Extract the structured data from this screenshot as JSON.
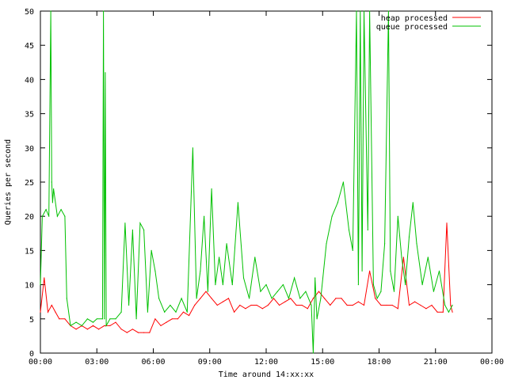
{
  "chart_data": {
    "type": "line",
    "xlabel": "Time around 14:xx:xx",
    "ylabel": "Queries per second",
    "x_ticks": [
      "00:00",
      "03:00",
      "06:00",
      "09:00",
      "12:00",
      "15:00",
      "18:00",
      "21:00",
      "00:00"
    ],
    "x_tick_hours": [
      0,
      3,
      6,
      9,
      12,
      15,
      18,
      21,
      24
    ],
    "xlim": [
      0,
      24
    ],
    "ylim": [
      0,
      50
    ],
    "y_ticks": [
      0,
      5,
      10,
      15,
      20,
      25,
      30,
      35,
      40,
      45,
      50
    ],
    "grid": false,
    "legend_position": "top-right",
    "series": [
      {
        "name": "heap processed",
        "color": "#ff0000",
        "x": [
          0.0,
          0.2,
          0.4,
          0.6,
          0.8,
          1.0,
          1.3,
          1.6,
          1.9,
          2.2,
          2.5,
          2.8,
          3.1,
          3.4,
          3.7,
          4.0,
          4.3,
          4.6,
          4.9,
          5.2,
          5.5,
          5.8,
          6.1,
          6.4,
          6.7,
          7.0,
          7.3,
          7.6,
          7.9,
          8.2,
          8.5,
          8.8,
          9.1,
          9.4,
          9.7,
          10.0,
          10.3,
          10.6,
          10.9,
          11.2,
          11.5,
          11.8,
          12.1,
          12.4,
          12.7,
          13.0,
          13.3,
          13.6,
          13.9,
          14.2,
          14.5,
          14.8,
          15.1,
          15.4,
          15.7,
          16.0,
          16.3,
          16.6,
          16.9,
          17.2,
          17.5,
          17.8,
          18.1,
          18.4,
          18.7,
          19.0,
          19.3,
          19.6,
          19.9,
          20.2,
          20.5,
          20.8,
          21.1,
          21.4,
          21.6,
          21.8,
          21.9
        ],
        "y": [
          6,
          11,
          6,
          7,
          6,
          5,
          5,
          4,
          3.5,
          4,
          3.5,
          4,
          3.5,
          4,
          4,
          4.5,
          3.5,
          3,
          3.5,
          3,
          3,
          3,
          5,
          4,
          4.5,
          5,
          5,
          6,
          5.5,
          7,
          8,
          9,
          8,
          7,
          7.5,
          8,
          6,
          7,
          6.5,
          7,
          7,
          6.5,
          7,
          8,
          7,
          7.5,
          8,
          7,
          7,
          6.5,
          8,
          9,
          8,
          7,
          8,
          8,
          7,
          7,
          7.5,
          7,
          12,
          8,
          7,
          7,
          7,
          6.5,
          14,
          7,
          7.5,
          7,
          6.5,
          7,
          6,
          6,
          19,
          7,
          6
        ]
      },
      {
        "name": "queue processed",
        "color": "#00c000",
        "x": [
          0.0,
          0.1,
          0.3,
          0.45,
          0.55,
          0.6,
          0.65,
          0.7,
          0.9,
          1.1,
          1.3,
          1.4,
          1.6,
          1.9,
          2.2,
          2.5,
          2.8,
          3.0,
          3.3,
          3.35,
          3.4,
          3.45,
          3.5,
          3.7,
          4.0,
          4.3,
          4.5,
          4.7,
          4.9,
          5.1,
          5.3,
          5.5,
          5.7,
          5.9,
          6.1,
          6.3,
          6.6,
          6.9,
          7.2,
          7.5,
          7.8,
          8.1,
          8.3,
          8.5,
          8.7,
          8.9,
          9.1,
          9.3,
          9.5,
          9.7,
          9.9,
          10.2,
          10.5,
          10.8,
          11.1,
          11.4,
          11.7,
          12.0,
          12.3,
          12.6,
          12.9,
          13.2,
          13.5,
          13.8,
          14.1,
          14.4,
          14.5,
          14.6,
          14.7,
          14.9,
          15.2,
          15.5,
          15.8,
          16.1,
          16.4,
          16.6,
          16.8,
          16.9,
          17.0,
          17.1,
          17.2,
          17.4,
          17.5,
          17.7,
          17.9,
          18.1,
          18.3,
          18.5,
          18.6,
          18.8,
          19.0,
          19.2,
          19.4,
          19.6,
          19.8,
          20.0,
          20.3,
          20.6,
          20.9,
          21.2,
          21.5,
          21.7,
          21.9
        ],
        "y": [
          10,
          20,
          21,
          20,
          50,
          25,
          22,
          24,
          20,
          21,
          20,
          8,
          4,
          4.5,
          4,
          5,
          4.5,
          5,
          5,
          50,
          5,
          41,
          4,
          5,
          5,
          6,
          19,
          7,
          18,
          5,
          19,
          18,
          6,
          15,
          12,
          8,
          6,
          7,
          6,
          8,
          6,
          30,
          8,
          12,
          20,
          9,
          24,
          10,
          14,
          10,
          16,
          10,
          22,
          11,
          8,
          14,
          9,
          10,
          8,
          9,
          10,
          8,
          11,
          8,
          9,
          7,
          0,
          11,
          5,
          8,
          16,
          20,
          22,
          25,
          18,
          15,
          50,
          10,
          50,
          12,
          50,
          18,
          50,
          10,
          8,
          9,
          16,
          50,
          12,
          9,
          20,
          14,
          10,
          17,
          22,
          16,
          10,
          14,
          9,
          12,
          7,
          6,
          7
        ]
      }
    ]
  }
}
